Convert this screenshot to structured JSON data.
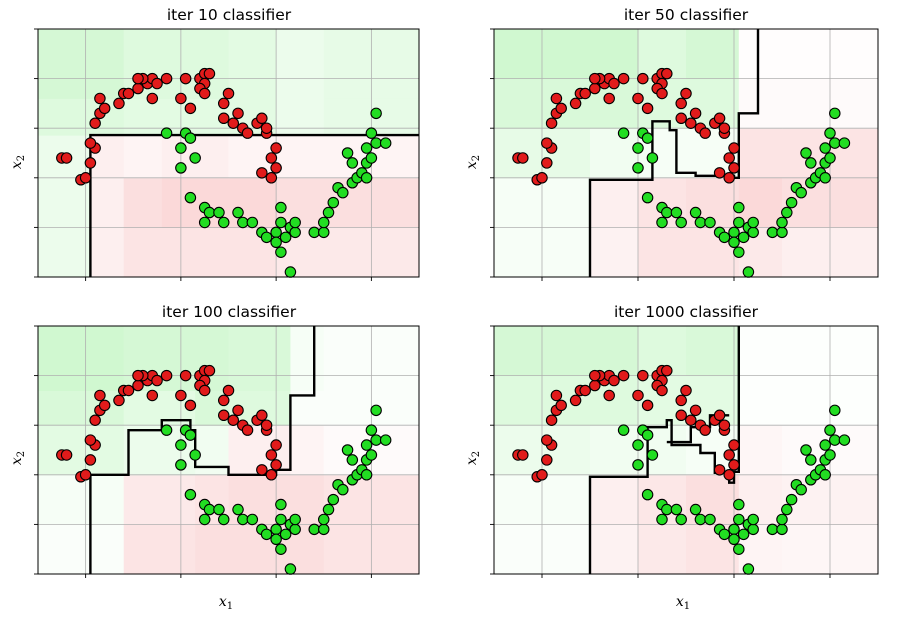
{
  "figure": {
    "xlabel": "x",
    "xlabel_sub": "1",
    "ylabel": "x",
    "ylabel_sub": "2"
  },
  "colors": {
    "class0_point": "#e11b1b",
    "class1_point": "#22dd22",
    "region_red": "#f08080",
    "region_green": "#90ee90",
    "boundary": "#000000",
    "grid": "#b0b0b0"
  },
  "chart_data": [
    {
      "type": "scatter",
      "title": "iter 10 classifier",
      "xlabel": "x₁",
      "ylabel": "x₂",
      "xlim": [
        -1.5,
        2.5
      ],
      "ylim": [
        -1.0,
        1.5
      ],
      "grid": true,
      "ticklabels_visible": false,
      "boundary": [
        [
          -0.95,
          -1.0
        ],
        [
          -0.95,
          0.43
        ],
        [
          2.5,
          0.43
        ]
      ],
      "heatmap": {
        "x_edges": [
          -1.5,
          -0.95,
          -0.6,
          -0.2,
          0.5,
          1.0,
          1.5,
          2.5
        ],
        "y_edges": [
          -1.0,
          -0.5,
          0.0,
          0.43,
          0.8,
          1.5
        ],
        "values": [
          [
            -0.2,
            0.15,
            0.25,
            0.25,
            0.25,
            0.2,
            0.2
          ],
          [
            -0.2,
            0.15,
            0.3,
            0.35,
            0.35,
            0.3,
            0.3
          ],
          [
            -0.2,
            0.15,
            0.1,
            0.15,
            0.1,
            0.1,
            0.1
          ],
          [
            -0.35,
            -0.35,
            -0.3,
            -0.3,
            -0.3,
            -0.2,
            -0.25
          ],
          [
            -0.45,
            -0.45,
            -0.35,
            -0.35,
            -0.3,
            -0.2,
            -0.25
          ]
        ]
      }
    },
    {
      "type": "scatter",
      "title": "iter 50 classifier",
      "xlabel": "x₁",
      "ylabel": "x₂",
      "xlim": [
        -1.5,
        2.5
      ],
      "ylim": [
        -1.0,
        1.5
      ],
      "grid": true,
      "ticklabels_visible": false,
      "boundary": [
        [
          -0.5,
          -1.0
        ],
        [
          -0.5,
          -0.02
        ],
        [
          0.15,
          -0.02
        ],
        [
          0.15,
          0.57
        ],
        [
          0.33,
          0.57
        ],
        [
          0.33,
          0.48
        ],
        [
          0.4,
          0.48
        ],
        [
          0.4,
          0.05
        ],
        [
          0.6,
          0.05
        ],
        [
          0.6,
          0.02
        ],
        [
          1.0,
          0.02
        ],
        [
          1.0,
          0.0
        ],
        [
          1.05,
          0.0
        ],
        [
          1.05,
          0.65
        ],
        [
          1.25,
          0.65
        ],
        [
          1.25,
          1.5
        ]
      ],
      "heatmap": {
        "x_edges": [
          -1.5,
          -0.5,
          0.0,
          0.5,
          1.05,
          1.5,
          2.5
        ],
        "y_edges": [
          -1.0,
          -0.5,
          0.0,
          0.5,
          1.0,
          1.5
        ],
        "values": [
          [
            -0.08,
            0.12,
            0.25,
            0.25,
            0.2,
            0.15
          ],
          [
            -0.1,
            0.15,
            0.25,
            0.3,
            0.35,
            0.3
          ],
          [
            -0.25,
            -0.15,
            -0.1,
            -0.1,
            0.25,
            0.25
          ],
          [
            -0.4,
            -0.4,
            -0.35,
            -0.35,
            0.05,
            0.05
          ],
          [
            -0.5,
            -0.5,
            -0.35,
            -0.45,
            0.02,
            0.02
          ]
        ]
      }
    },
    {
      "type": "scatter",
      "title": "iter 100 classifier",
      "xlabel": "x₁",
      "ylabel": "x₂",
      "xlim": [
        -1.5,
        2.5
      ],
      "ylim": [
        -1.0,
        1.5
      ],
      "grid": true,
      "ticklabels_visible": false,
      "boundary": [
        [
          -0.95,
          -1.0
        ],
        [
          -0.95,
          0.0
        ],
        [
          -0.55,
          0.0
        ],
        [
          -0.55,
          0.45
        ],
        [
          -0.2,
          0.45
        ],
        [
          -0.2,
          0.55
        ],
        [
          0.1,
          0.55
        ],
        [
          0.1,
          0.45
        ],
        [
          0.15,
          0.45
        ],
        [
          0.15,
          0.08
        ],
        [
          0.5,
          0.08
        ],
        [
          0.5,
          0.0
        ],
        [
          1.0,
          0.0
        ],
        [
          1.0,
          0.05
        ],
        [
          1.15,
          0.05
        ],
        [
          1.15,
          0.8
        ],
        [
          1.4,
          0.8
        ],
        [
          1.4,
          1.5
        ]
      ],
      "heatmap": {
        "x_edges": [
          -1.5,
          -0.95,
          -0.6,
          0.15,
          0.5,
          1.15,
          1.5,
          2.5
        ],
        "y_edges": [
          -1.0,
          -0.5,
          0.0,
          0.5,
          0.85,
          1.5
        ],
        "values": [
          [
            -0.05,
            -0.05,
            0.25,
            0.3,
            0.3,
            0.3,
            0.25
          ],
          [
            -0.1,
            -0.1,
            0.2,
            0.25,
            0.3,
            0.3,
            0.25
          ],
          [
            -0.3,
            -0.3,
            -0.2,
            -0.15,
            0.15,
            0.1,
            0.05
          ],
          [
            -0.4,
            -0.4,
            -0.3,
            -0.4,
            -0.35,
            -0.05,
            -0.05
          ],
          [
            -0.5,
            -0.5,
            -0.45,
            -0.45,
            -0.4,
            -0.1,
            -0.05
          ]
        ]
      }
    },
    {
      "type": "scatter",
      "title": "iter 1000 classifier",
      "xlabel": "x₁",
      "ylabel": "x₂",
      "xlim": [
        -1.5,
        2.5
      ],
      "ylim": [
        -1.0,
        1.5
      ],
      "grid": true,
      "ticklabels_visible": false,
      "boundary": [
        [
          -0.5,
          -1.0
        ],
        [
          -0.5,
          -0.02
        ],
        [
          0.1,
          -0.02
        ],
        [
          0.1,
          0.48
        ],
        [
          0.3,
          0.48
        ],
        [
          0.3,
          0.55
        ],
        [
          0.35,
          0.55
        ],
        [
          0.35,
          0.3
        ],
        [
          0.65,
          0.3
        ],
        [
          0.65,
          0.22
        ],
        [
          0.8,
          0.22
        ],
        [
          0.8,
          0.02
        ],
        [
          0.95,
          0.02
        ],
        [
          0.95,
          -0.08
        ],
        [
          1.0,
          -0.08
        ],
        [
          1.0,
          0.03
        ],
        [
          1.05,
          0.03
        ],
        [
          1.05,
          1.5
        ]
      ],
      "extra_boundary": [
        [
          0.3,
          0.33
        ],
        [
          0.55,
          0.33
        ],
        [
          0.55,
          0.48
        ],
        [
          0.75,
          0.48
        ],
        [
          0.75,
          0.6
        ],
        [
          0.95,
          0.6
        ]
      ],
      "heatmap": {
        "x_edges": [
          -1.5,
          -0.5,
          0.0,
          0.5,
          1.05,
          1.5,
          2.5
        ],
        "y_edges": [
          -1.0,
          -0.5,
          0.0,
          0.5,
          1.0,
          1.5
        ],
        "values": [
          [
            -0.05,
            0.12,
            0.2,
            0.25,
            0.1,
            0.08
          ],
          [
            -0.08,
            0.15,
            0.22,
            0.3,
            0.15,
            0.12
          ],
          [
            -0.2,
            -0.15,
            -0.15,
            -0.1,
            0.08,
            0.05
          ],
          [
            -0.35,
            -0.35,
            -0.3,
            -0.3,
            -0.02,
            -0.02
          ],
          [
            -0.45,
            -0.45,
            -0.35,
            -0.4,
            -0.02,
            -0.02
          ]
        ]
      }
    }
  ],
  "points": {
    "class0": [
      [
        -1.05,
        -0.02
      ],
      [
        -1.0,
        0.0
      ],
      [
        -0.95,
        0.15
      ],
      [
        -1.25,
        0.2
      ],
      [
        -1.2,
        0.2
      ],
      [
        -0.9,
        0.3
      ],
      [
        -0.95,
        0.35
      ],
      [
        -0.9,
        0.55
      ],
      [
        -0.85,
        0.65
      ],
      [
        -0.8,
        0.7
      ],
      [
        -0.85,
        0.8
      ],
      [
        -0.6,
        0.85
      ],
      [
        -0.55,
        0.85
      ],
      [
        -0.65,
        0.75
      ],
      [
        -0.45,
        0.9
      ],
      [
        -0.35,
        0.95
      ],
      [
        -0.3,
        1.0
      ],
      [
        -0.4,
        1.0
      ],
      [
        -0.15,
        1.0
      ],
      [
        -0.25,
        0.95
      ],
      [
        -0.45,
        1.0
      ],
      [
        -0.3,
        0.8
      ],
      [
        0.05,
        1.0
      ],
      [
        0.2,
        1.0
      ],
      [
        0.25,
        1.05
      ],
      [
        0.3,
        1.05
      ],
      [
        0.25,
        0.95
      ],
      [
        0.2,
        0.9
      ],
      [
        0.0,
        0.8
      ],
      [
        0.1,
        0.7
      ],
      [
        0.25,
        0.85
      ],
      [
        0.45,
        0.75
      ],
      [
        0.5,
        0.85
      ],
      [
        0.45,
        0.6
      ],
      [
        0.55,
        0.55
      ],
      [
        0.6,
        0.65
      ],
      [
        0.8,
        0.55
      ],
      [
        0.85,
        0.6
      ],
      [
        0.9,
        0.45
      ],
      [
        1.0,
        0.3
      ],
      [
        0.95,
        0.2
      ],
      [
        1.0,
        0.1
      ],
      [
        0.95,
        0.0
      ],
      [
        0.85,
        0.05
      ],
      [
        0.9,
        0.5
      ],
      [
        0.65,
        0.5
      ],
      [
        0.7,
        0.45
      ]
    ],
    "class1": [
      [
        0.05,
        0.45
      ],
      [
        0.0,
        0.3
      ],
      [
        0.15,
        0.2
      ],
      [
        0.0,
        0.1
      ],
      [
        0.1,
        -0.2
      ],
      [
        0.25,
        -0.3
      ],
      [
        0.3,
        -0.35
      ],
      [
        0.25,
        -0.45
      ],
      [
        0.4,
        -0.35
      ],
      [
        0.45,
        -0.45
      ],
      [
        0.6,
        -0.35
      ],
      [
        0.65,
        -0.45
      ],
      [
        0.75,
        -0.45
      ],
      [
        0.85,
        -0.55
      ],
      [
        0.9,
        -0.6
      ],
      [
        1.0,
        -0.55
      ],
      [
        1.05,
        -0.45
      ],
      [
        1.0,
        -0.65
      ],
      [
        1.15,
        -0.5
      ],
      [
        1.1,
        -0.6
      ],
      [
        1.05,
        -0.75
      ],
      [
        1.2,
        -0.55
      ],
      [
        1.2,
        -0.45
      ],
      [
        1.05,
        -0.3
      ],
      [
        1.15,
        -0.95
      ],
      [
        1.4,
        -0.55
      ],
      [
        1.5,
        -0.55
      ],
      [
        1.5,
        -0.45
      ],
      [
        1.55,
        -0.35
      ],
      [
        1.6,
        -0.25
      ],
      [
        1.65,
        -0.1
      ],
      [
        1.7,
        -0.15
      ],
      [
        1.8,
        -0.05
      ],
      [
        1.85,
        0.0
      ],
      [
        1.8,
        0.15
      ],
      [
        1.75,
        0.25
      ],
      [
        1.9,
        0.05
      ],
      [
        1.95,
        0.15
      ],
      [
        1.95,
        0.0
      ],
      [
        2.0,
        0.2
      ],
      [
        1.95,
        0.3
      ],
      [
        2.05,
        0.35
      ],
      [
        2.0,
        0.45
      ],
      [
        2.15,
        0.35
      ],
      [
        2.05,
        0.65
      ],
      [
        -0.15,
        0.45
      ],
      [
        0.1,
        0.4
      ]
    ]
  }
}
